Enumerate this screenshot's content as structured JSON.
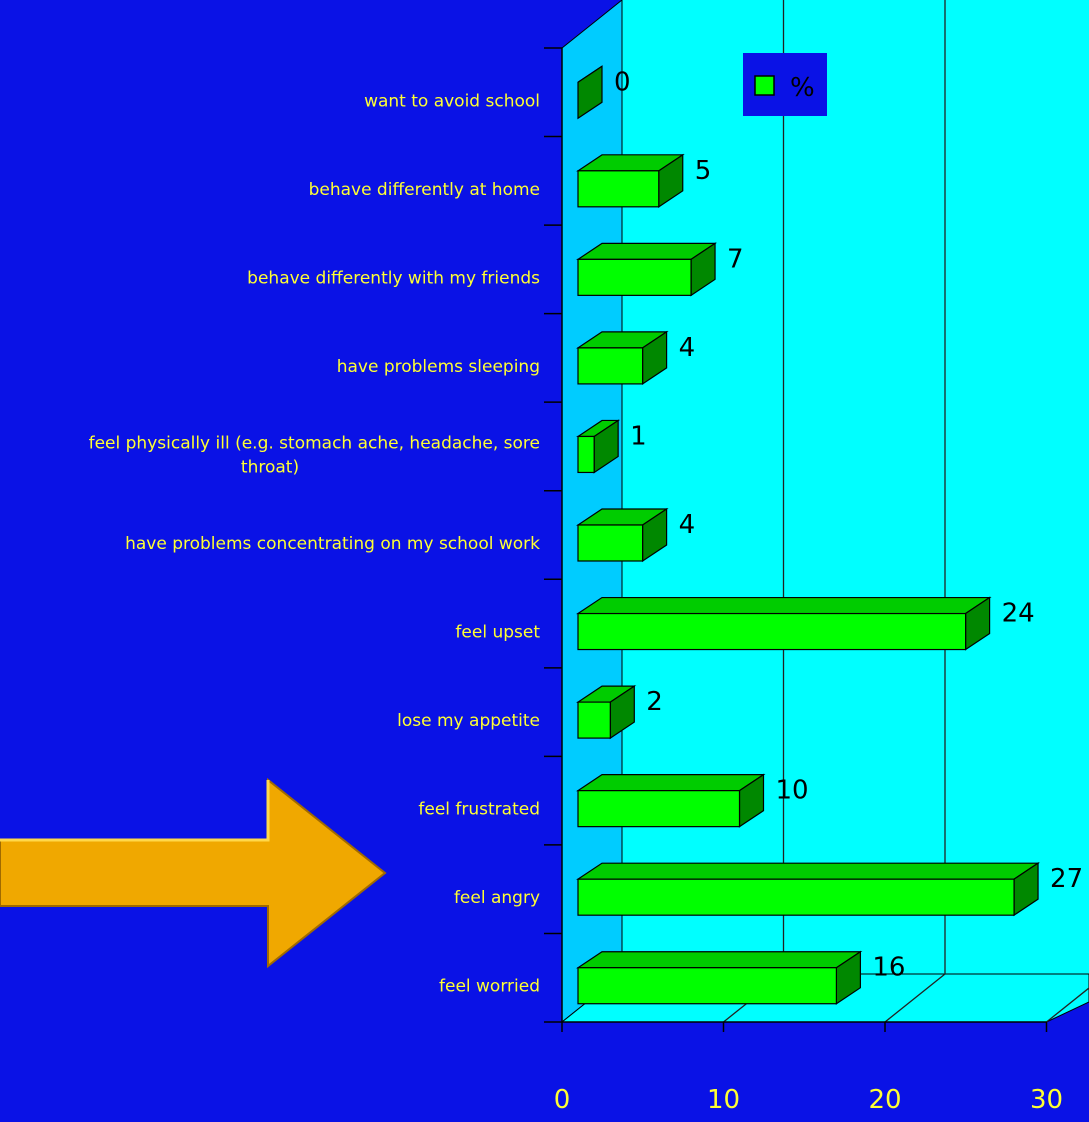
{
  "chart_data": {
    "type": "bar",
    "orientation": "horizontal",
    "categories": [
      "want to avoid school",
      "behave differently at home",
      "behave differently with my friends",
      "have problems sleeping",
      "feel physically ill (e.g. stomach ache, headache, sore throat)",
      "have problems concentrating on my school work",
      "feel upset",
      "lose my appetite",
      "feel frustrated",
      "feel angry",
      "feel worried"
    ],
    "category_lines": [
      [
        "want to avoid school"
      ],
      [
        "behave differently at home"
      ],
      [
        "behave differently with my friends"
      ],
      [
        "have problems sleeping"
      ],
      [
        "feel physically ill (e.g. stomach ache, headache, sore",
        "throat)"
      ],
      [
        "have problems concentrating on my school work"
      ],
      [
        "feel upset"
      ],
      [
        "lose my appetite"
      ],
      [
        "feel frustrated"
      ],
      [
        "feel angry"
      ],
      [
        "feel worried"
      ]
    ],
    "series": [
      {
        "name": "%",
        "values": [
          0,
          5,
          7,
          4,
          1,
          4,
          24,
          2,
          10,
          27,
          16
        ]
      }
    ],
    "data_labels": [
      "0",
      "5",
      "7",
      "4",
      "1",
      "4",
      "24",
      "2",
      "10",
      "27",
      "16"
    ],
    "xlim": [
      0,
      30
    ],
    "xticks": [
      "0",
      "10",
      "20",
      "30"
    ],
    "grid": true,
    "legend_position": "top",
    "colors": {
      "background": "#0a12e6",
      "plot_wall": "#00ffff",
      "side_wall": "#00ccff",
      "bar_front": "#00ff00",
      "bar_top": "#00cc00",
      "bar_side": "#008800",
      "label_text": "#ffff33",
      "legend_box": "#0a12e6",
      "arrow": "#f0a800"
    },
    "annotations": [
      {
        "type": "arrow-icon",
        "direction": "right",
        "points_to": "feel angry"
      }
    ]
  }
}
